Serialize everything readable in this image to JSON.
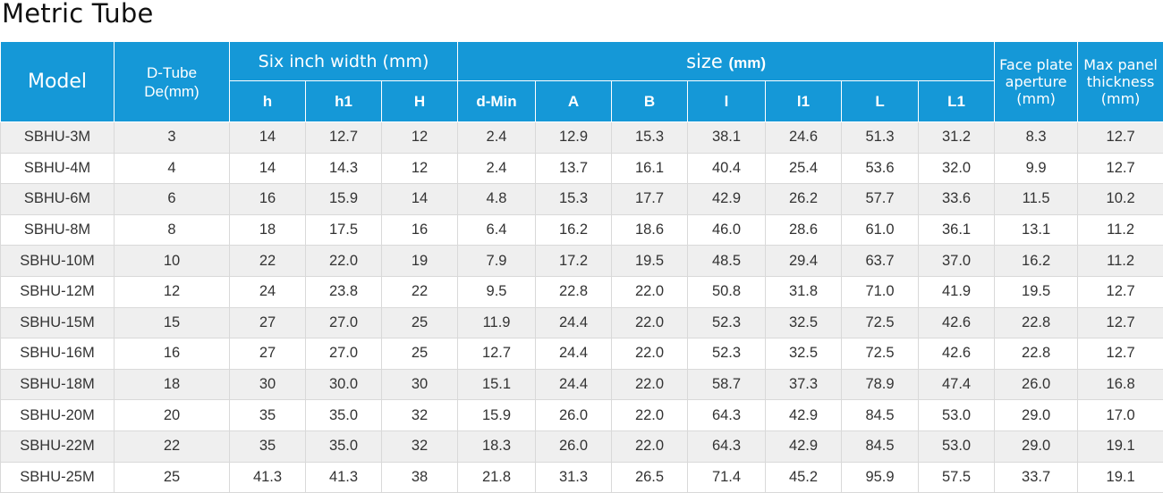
{
  "title": "Metric Tube",
  "header": {
    "model": "Model",
    "dtube_line1": "D-Tube",
    "dtube_line2": "De(mm)",
    "six_inch": "Six inch width (mm)",
    "size": "size",
    "size_unit": "(mm)",
    "face_line1": "Face plate",
    "face_line2": "aperture",
    "face_line3": "(mm)",
    "max_line1": "Max panel",
    "max_line2": "thickness",
    "max_line3": "(mm)",
    "sub": [
      "h",
      "h1",
      "H",
      "d-Min",
      "A",
      "B",
      "l",
      "l1",
      "L",
      "L1"
    ]
  },
  "rows": [
    [
      "SBHU-3M",
      "3",
      "14",
      "12.7",
      "12",
      "2.4",
      "12.9",
      "15.3",
      "38.1",
      "24.6",
      "51.3",
      "31.2",
      "8.3",
      "12.7"
    ],
    [
      "SBHU-4M",
      "4",
      "14",
      "14.3",
      "12",
      "2.4",
      "13.7",
      "16.1",
      "40.4",
      "25.4",
      "53.6",
      "32.0",
      "9.9",
      "12.7"
    ],
    [
      "SBHU-6M",
      "6",
      "16",
      "15.9",
      "14",
      "4.8",
      "15.3",
      "17.7",
      "42.9",
      "26.2",
      "57.7",
      "33.6",
      "11.5",
      "10.2"
    ],
    [
      "SBHU-8M",
      "8",
      "18",
      "17.5",
      "16",
      "6.4",
      "16.2",
      "18.6",
      "46.0",
      "28.6",
      "61.0",
      "36.1",
      "13.1",
      "11.2"
    ],
    [
      "SBHU-10M",
      "10",
      "22",
      "22.0",
      "19",
      "7.9",
      "17.2",
      "19.5",
      "48.5",
      "29.4",
      "63.7",
      "37.0",
      "16.2",
      "11.2"
    ],
    [
      "SBHU-12M",
      "12",
      "24",
      "23.8",
      "22",
      "9.5",
      "22.8",
      "22.0",
      "50.8",
      "31.8",
      "71.0",
      "41.9",
      "19.5",
      "12.7"
    ],
    [
      "SBHU-15M",
      "15",
      "27",
      "27.0",
      "25",
      "11.9",
      "24.4",
      "22.0",
      "52.3",
      "32.5",
      "72.5",
      "42.6",
      "22.8",
      "12.7"
    ],
    [
      "SBHU-16M",
      "16",
      "27",
      "27.0",
      "25",
      "12.7",
      "24.4",
      "22.0",
      "52.3",
      "32.5",
      "72.5",
      "42.6",
      "22.8",
      "12.7"
    ],
    [
      "SBHU-18M",
      "18",
      "30",
      "30.0",
      "30",
      "15.1",
      "24.4",
      "22.0",
      "58.7",
      "37.3",
      "78.9",
      "47.4",
      "26.0",
      "16.8"
    ],
    [
      "SBHU-20M",
      "20",
      "35",
      "35.0",
      "32",
      "15.9",
      "26.0",
      "22.0",
      "64.3",
      "42.9",
      "84.5",
      "53.0",
      "29.0",
      "17.0"
    ],
    [
      "SBHU-22M",
      "22",
      "35",
      "35.0",
      "32",
      "18.3",
      "26.0",
      "22.0",
      "64.3",
      "42.9",
      "84.5",
      "53.0",
      "29.0",
      "19.1"
    ],
    [
      "SBHU-25M",
      "25",
      "41.3",
      "41.3",
      "38",
      "21.8",
      "31.3",
      "26.5",
      "71.4",
      "45.2",
      "95.9",
      "57.5",
      "33.7",
      "19.1"
    ]
  ],
  "colors": {
    "header_bg": "#1598d7",
    "header_text": "#ffffff",
    "row_alt_bg": "#efefef",
    "row_bg": "#ffffff",
    "cell_text": "#333333"
  }
}
